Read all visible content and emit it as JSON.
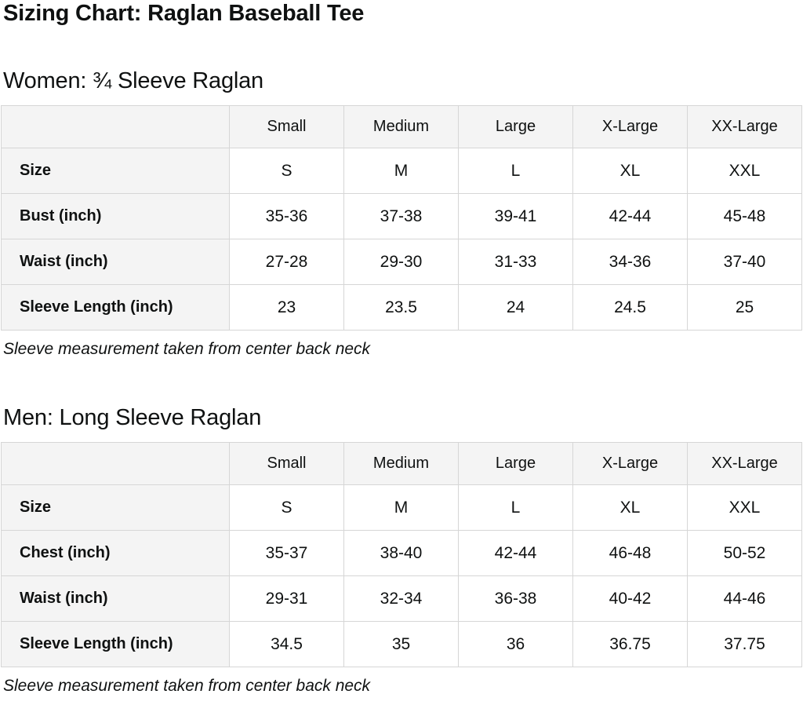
{
  "page": {
    "title": "Sizing Chart: Raglan Baseball Tee"
  },
  "colors": {
    "label_bg": "#f4f4f4",
    "border": "#d6d6d6",
    "text": "#0f1111",
    "page_bg": "#ffffff"
  },
  "sections": [
    {
      "heading": "Women: ¾ Sleeve Raglan",
      "note": "Sleeve measurement taken from center back neck",
      "table": {
        "columns": [
          "",
          "Small",
          "Medium",
          "Large",
          "X-Large",
          "XX-Large"
        ],
        "rows": [
          {
            "label": "Size",
            "values": [
              "S",
              "M",
              "L",
              "XL",
              "XXL"
            ]
          },
          {
            "label": "Bust (inch)",
            "values": [
              "35-36",
              "37-38",
              "39-41",
              "42-44",
              "45-48"
            ]
          },
          {
            "label": "Waist (inch)",
            "values": [
              "27-28",
              "29-30",
              "31-33",
              "34-36",
              "37-40"
            ]
          },
          {
            "label": "Sleeve Length (inch)",
            "values": [
              "23",
              "23.5",
              "24",
              "24.5",
              "25"
            ]
          }
        ]
      }
    },
    {
      "heading": "Men: Long Sleeve Raglan",
      "note": "Sleeve measurement taken from center back neck",
      "table": {
        "columns": [
          "",
          "Small",
          "Medium",
          "Large",
          "X-Large",
          "XX-Large"
        ],
        "rows": [
          {
            "label": "Size",
            "values": [
              "S",
              "M",
              "L",
              "XL",
              "XXL"
            ]
          },
          {
            "label": "Chest (inch)",
            "values": [
              "35-37",
              "38-40",
              "42-44",
              "46-48",
              "50-52"
            ]
          },
          {
            "label": "Waist (inch)",
            "values": [
              "29-31",
              "32-34",
              "36-38",
              "40-42",
              "44-46"
            ]
          },
          {
            "label": "Sleeve Length (inch)",
            "values": [
              "34.5",
              "35",
              "36",
              "36.75",
              "37.75"
            ]
          }
        ]
      }
    }
  ]
}
